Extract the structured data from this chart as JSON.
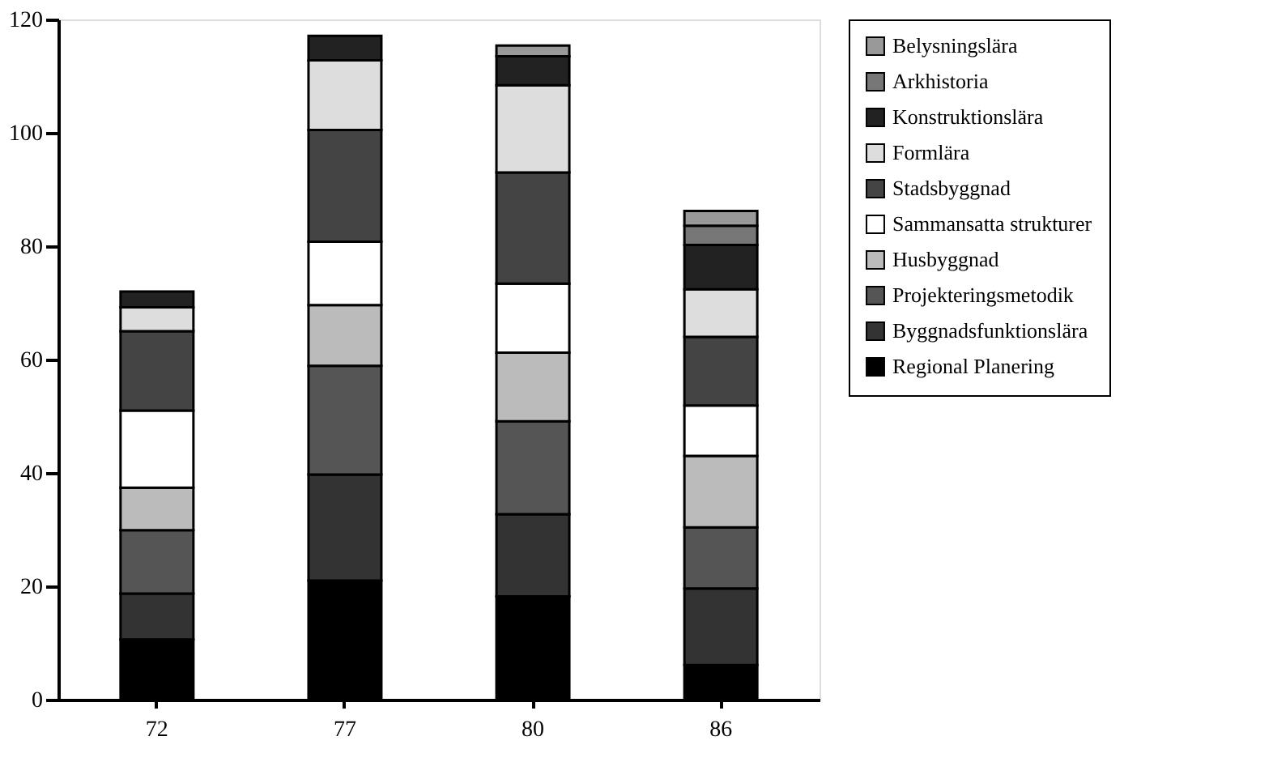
{
  "chart_data": {
    "type": "bar",
    "stacked": true,
    "categories": [
      "72",
      "77",
      "80",
      "86"
    ],
    "series": [
      {
        "name": "Regional Planering",
        "color": "#000000",
        "values": [
          10.6,
          21.0,
          18.2,
          6.1
        ]
      },
      {
        "name": "Byggnadsfunktionslära",
        "color": "#333333",
        "values": [
          8.1,
          18.7,
          14.5,
          13.5
        ]
      },
      {
        "name": "Projekteringsmetodik",
        "color": "#555555",
        "values": [
          11.2,
          19.2,
          16.4,
          10.8
        ]
      },
      {
        "name": "Husbyggnad",
        "color": "#bbbbbb",
        "values": [
          7.5,
          10.7,
          12.1,
          12.6
        ]
      },
      {
        "name": "Sammansatta strukturer",
        "color": "#ffffff",
        "values": [
          13.6,
          11.2,
          12.2,
          8.9
        ]
      },
      {
        "name": "Stadsbyggnad",
        "color": "#444444",
        "values": [
          14.0,
          19.7,
          19.6,
          12.1
        ]
      },
      {
        "name": "Formlära",
        "color": "#dddddd",
        "values": [
          4.2,
          12.3,
          15.4,
          8.4
        ]
      },
      {
        "name": "Konstruktionslära",
        "color": "#222222",
        "values": [
          2.8,
          4.3,
          5.1,
          7.8
        ]
      },
      {
        "name": "Arkhistoria",
        "color": "#777777",
        "values": [
          null,
          null,
          null,
          3.4
        ]
      },
      {
        "name": "Belysningslära",
        "color": "#999999",
        "values": [
          null,
          null,
          1.9,
          2.6
        ]
      }
    ],
    "ylim": [
      0,
      120
    ],
    "yticks": [
      0,
      20,
      40,
      60,
      80,
      100,
      120
    ],
    "grid": false,
    "legend": "right"
  }
}
